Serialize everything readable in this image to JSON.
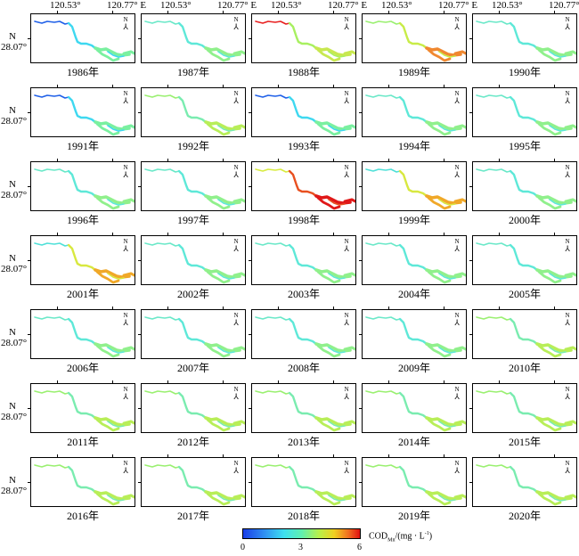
{
  "lon_labels": [
    "120.53°",
    "120.77° E"
  ],
  "lat_label": "28.07°",
  "lat_dir": "N",
  "north_letter": "N",
  "panels": [
    {
      "year": "1986年",
      "level": "blue-low"
    },
    {
      "year": "1987年",
      "level": "low"
    },
    {
      "year": "1988年",
      "level": "high-upstream"
    },
    {
      "year": "1989年",
      "level": "mixed-high"
    },
    {
      "year": "1990年",
      "level": "low"
    },
    {
      "year": "1991年",
      "level": "blue-low"
    },
    {
      "year": "1992年",
      "level": "mid"
    },
    {
      "year": "1993年",
      "level": "blue-low"
    },
    {
      "year": "1994年",
      "level": "low"
    },
    {
      "year": "1995年",
      "level": "low"
    },
    {
      "year": "1996年",
      "level": "low"
    },
    {
      "year": "1997年",
      "level": "low"
    },
    {
      "year": "1998年",
      "level": "very-high"
    },
    {
      "year": "1999年",
      "level": "high-downstream"
    },
    {
      "year": "2000年",
      "level": "low"
    },
    {
      "year": "2001年",
      "level": "high-downstream"
    },
    {
      "year": "2002年",
      "level": "low"
    },
    {
      "year": "2003年",
      "level": "low"
    },
    {
      "year": "2004年",
      "level": "low"
    },
    {
      "year": "2005年",
      "level": "low"
    },
    {
      "year": "2006年",
      "level": "low"
    },
    {
      "year": "2007年",
      "level": "low"
    },
    {
      "year": "2008年",
      "level": "low"
    },
    {
      "year": "2009年",
      "level": "low"
    },
    {
      "year": "2010年",
      "level": "mid"
    },
    {
      "year": "2011年",
      "level": "mid"
    },
    {
      "year": "2012年",
      "level": "mid"
    },
    {
      "year": "2013年",
      "level": "mid"
    },
    {
      "year": "2014年",
      "level": "mid"
    },
    {
      "year": "2015年",
      "level": "mid"
    },
    {
      "year": "2016年",
      "level": "mid"
    },
    {
      "year": "2017年",
      "level": "mid"
    },
    {
      "year": "2018年",
      "level": "mid"
    },
    {
      "year": "2019年",
      "level": "mid"
    },
    {
      "year": "2020年",
      "level": "mid"
    }
  ],
  "colorbar": {
    "min_label": "0",
    "mid_label": "3",
    "max_label": "6",
    "label_main": "COD",
    "label_sub": "Mn",
    "label_rest": "/(mg · L",
    "label_sup": "-1",
    "label_close": ")",
    "colors": [
      "#1a3ee8",
      "#3ee0f0",
      "#b8f04a",
      "#f0d020",
      "#e01010"
    ]
  }
}
